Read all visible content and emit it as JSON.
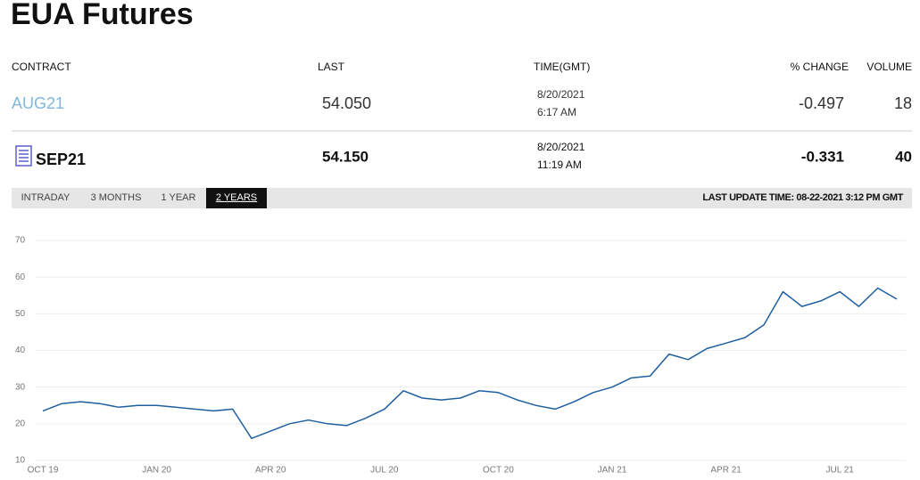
{
  "header": {
    "title": "EUA Futures"
  },
  "table": {
    "columns": [
      "CONTRACT",
      "LAST",
      "TIME(GMT)",
      "% CHANGE",
      "VOLUME"
    ],
    "rows": [
      {
        "contract": "AUG21",
        "last": "54.050",
        "date": "8/20/2021",
        "time": "6:17 AM",
        "change": "-0.497",
        "volume": "18"
      },
      {
        "contract": "SEP21",
        "last": "54.150",
        "date": "8/20/2021",
        "time": "11:19 AM",
        "change": "-0.331",
        "volume": "40"
      }
    ]
  },
  "tabs": [
    "INTRADAY",
    "3 MONTHS",
    "1 YEAR",
    "2 YEARS"
  ],
  "last_update": "LAST UPDATE TIME: 08-22-2021 3:12 PM GMT",
  "chart_data": {
    "type": "line",
    "categories": [
      "OCT 19",
      null,
      null,
      null,
      null,
      null,
      "JAN 20",
      null,
      null,
      null,
      null,
      null,
      "APR 20",
      null,
      null,
      null,
      null,
      null,
      "JUL 20",
      null,
      null,
      null,
      null,
      null,
      "OCT 20",
      null,
      null,
      null,
      null,
      null,
      "JAN 21",
      null,
      null,
      null,
      null,
      null,
      "APR 21",
      null,
      null,
      null,
      null,
      null,
      "JUL 21",
      null,
      null,
      null
    ],
    "values": [
      23.5,
      25.5,
      26,
      25.5,
      24.5,
      25,
      25,
      24.5,
      24,
      23.5,
      24,
      16,
      18,
      20,
      21,
      20,
      19.5,
      21.5,
      24,
      29,
      27,
      26.5,
      27,
      29,
      28.5,
      26.5,
      25,
      24,
      26,
      28.5,
      30,
      32.5,
      33,
      39,
      37.5,
      40.5,
      42,
      43.5,
      47,
      56,
      52,
      53.5,
      56,
      52,
      57,
      54
    ],
    "color": "#1f5fa0",
    "ylim": [
      10,
      70
    ],
    "yticks": [
      10,
      20,
      30,
      40,
      50,
      60,
      70
    ],
    "grid": true
  }
}
